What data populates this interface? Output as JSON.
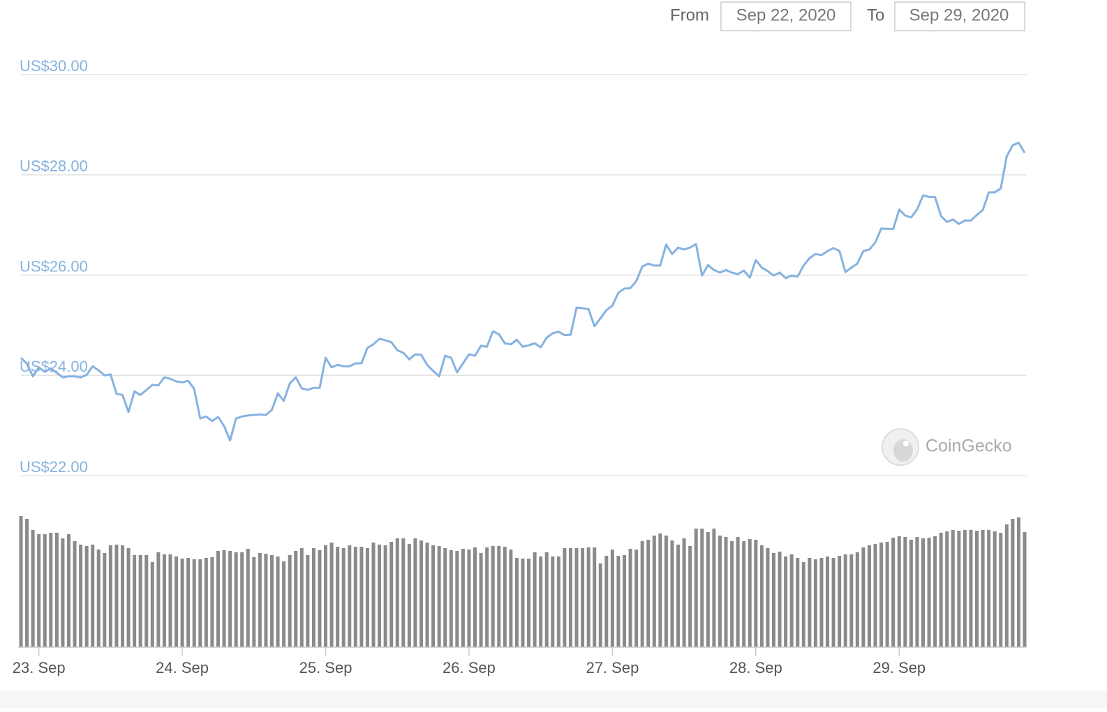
{
  "date_range": {
    "from_label": "From",
    "from": "Sep 22, 2020",
    "to_label": "To",
    "to": "Sep 29, 2020"
  },
  "watermark": "CoinGecko",
  "chart_data": [
    {
      "type": "line",
      "color": "#86b2e0",
      "grid": true,
      "xlim": [
        0,
        168
      ],
      "ylim": [
        22,
        30
      ],
      "yticks": [
        {
          "value": 30,
          "label": "US$30.00"
        },
        {
          "value": 28,
          "label": "US$28.00"
        },
        {
          "value": 26,
          "label": "US$26.00"
        },
        {
          "value": 24,
          "label": "US$24.00"
        },
        {
          "value": 22,
          "label": "US$22.00"
        }
      ],
      "x": [
        0,
        1,
        2,
        3,
        4,
        5,
        6,
        7,
        8,
        9,
        10,
        11,
        12,
        13,
        14,
        15,
        16,
        17,
        18,
        19,
        20,
        21,
        22,
        23,
        24,
        25,
        26,
        27,
        28,
        29,
        30,
        31,
        32,
        33,
        34,
        35,
        36,
        37,
        38,
        39,
        40,
        41,
        42,
        43,
        44,
        45,
        46,
        47,
        48,
        49,
        50,
        51,
        52,
        53,
        54,
        55,
        56,
        57,
        58,
        59,
        60,
        61,
        62,
        63,
        64,
        65,
        66,
        67,
        68,
        69,
        70,
        71,
        72,
        73,
        74,
        75,
        76,
        77,
        78,
        79,
        80,
        81,
        82,
        83,
        84,
        85,
        86,
        87,
        88,
        89,
        90,
        91,
        92,
        93,
        94,
        95,
        96,
        97,
        98,
        99,
        100,
        101,
        102,
        103,
        104,
        105,
        106,
        107,
        108,
        109,
        110,
        111,
        112,
        113,
        114,
        115,
        116,
        117,
        118,
        119,
        120,
        121,
        122,
        123,
        124,
        125,
        126,
        127,
        128,
        129,
        130,
        131,
        132,
        133,
        134,
        135,
        136,
        137,
        138,
        139,
        140,
        141,
        142,
        143,
        144,
        145,
        146,
        147,
        148,
        149,
        150,
        151,
        152,
        153,
        154,
        155,
        156,
        157,
        158,
        159,
        160,
        161,
        162,
        163,
        164,
        165,
        166,
        167,
        168
      ],
      "values": [
        24.35,
        24.23,
        23.98,
        24.16,
        24.07,
        24.14,
        24.05,
        23.96,
        23.98,
        23.98,
        23.96,
        24.01,
        24.18,
        24.1,
        24.0,
        24.02,
        23.63,
        23.61,
        23.27,
        23.68,
        23.61,
        23.71,
        23.81,
        23.8,
        23.96,
        23.93,
        23.88,
        23.86,
        23.89,
        23.73,
        23.14,
        23.18,
        23.09,
        23.17,
        22.99,
        22.7,
        23.14,
        23.18,
        23.2,
        23.21,
        23.22,
        23.21,
        23.31,
        23.64,
        23.49,
        23.84,
        23.96,
        23.74,
        23.71,
        23.75,
        23.75,
        24.35,
        24.16,
        24.21,
        24.18,
        24.18,
        24.24,
        24.24,
        24.55,
        24.62,
        24.73,
        24.7,
        24.66,
        24.5,
        24.45,
        24.32,
        24.42,
        24.41,
        24.21,
        24.09,
        23.98,
        24.39,
        24.35,
        24.06,
        24.24,
        24.42,
        24.39,
        24.59,
        24.57,
        24.88,
        24.82,
        24.64,
        24.62,
        24.71,
        24.57,
        24.6,
        24.64,
        24.56,
        24.75,
        24.84,
        24.87,
        24.8,
        24.81,
        25.35,
        25.34,
        25.32,
        24.98,
        25.14,
        25.3,
        25.39,
        25.65,
        25.73,
        25.74,
        25.88,
        26.17,
        26.23,
        26.19,
        26.19,
        26.61,
        26.42,
        26.55,
        26.51,
        26.55,
        26.62,
        25.99,
        26.2,
        26.1,
        26.05,
        26.1,
        26.05,
        26.02,
        26.09,
        25.95,
        26.3,
        26.15,
        26.08,
        25.99,
        26.05,
        25.94,
        25.99,
        25.97,
        26.19,
        26.34,
        26.42,
        26.4,
        26.48,
        26.54,
        26.48,
        26.06,
        26.15,
        26.23,
        26.48,
        26.51,
        26.65,
        26.93,
        26.92,
        26.92,
        27.31,
        27.19,
        27.15,
        27.31,
        27.59,
        27.56,
        27.56,
        27.18,
        27.06,
        27.11,
        27.02,
        27.09,
        27.09,
        27.2,
        27.3,
        27.65,
        27.65,
        27.73,
        28.37,
        28.59,
        28.64,
        28.44
      ]
    },
    {
      "type": "bar",
      "color": "#8a8a8a",
      "xlim": [
        0,
        168
      ],
      "xticks": [
        {
          "value": 3,
          "label": "23. Sep"
        },
        {
          "value": 27,
          "label": "24. Sep"
        },
        {
          "value": 51,
          "label": "25. Sep"
        },
        {
          "value": 75,
          "label": "26. Sep"
        },
        {
          "value": 99,
          "label": "27. Sep"
        },
        {
          "value": 123,
          "label": "28. Sep"
        },
        {
          "value": 147,
          "label": "29. Sep"
        }
      ],
      "x": [
        0,
        1,
        2,
        3,
        4,
        5,
        6,
        7,
        8,
        9,
        10,
        11,
        12,
        13,
        14,
        15,
        16,
        17,
        18,
        19,
        20,
        21,
        22,
        23,
        24,
        25,
        26,
        27,
        28,
        29,
        30,
        31,
        32,
        33,
        34,
        35,
        36,
        37,
        38,
        39,
        40,
        41,
        42,
        43,
        44,
        45,
        46,
        47,
        48,
        49,
        50,
        51,
        52,
        53,
        54,
        55,
        56,
        57,
        58,
        59,
        60,
        61,
        62,
        63,
        64,
        65,
        66,
        67,
        68,
        69,
        70,
        71,
        72,
        73,
        74,
        75,
        76,
        77,
        78,
        79,
        80,
        81,
        82,
        83,
        84,
        85,
        86,
        87,
        88,
        89,
        90,
        91,
        92,
        93,
        94,
        95,
        96,
        97,
        98,
        99,
        100,
        101,
        102,
        103,
        104,
        105,
        106,
        107,
        108,
        109,
        110,
        111,
        112,
        113,
        114,
        115,
        116,
        117,
        118,
        119,
        120,
        121,
        122,
        123,
        124,
        125,
        126,
        127,
        128,
        129,
        130,
        131,
        132,
        133,
        134,
        135,
        136,
        137,
        138,
        139,
        140,
        141,
        142,
        143,
        144,
        145,
        146,
        147,
        148,
        149,
        150,
        151,
        152,
        153,
        154,
        155,
        156,
        157,
        158,
        159,
        160,
        161,
        162,
        163,
        164,
        165,
        166,
        167,
        168
      ],
      "values": [
        188,
        184,
        168,
        162,
        162,
        164,
        164,
        156,
        162,
        152,
        147,
        145,
        147,
        140,
        135,
        146,
        147,
        146,
        142,
        132,
        132,
        132,
        122,
        136,
        133,
        133,
        130,
        127,
        128,
        126,
        126,
        128,
        129,
        138,
        139,
        138,
        136,
        136,
        141,
        129,
        135,
        134,
        132,
        130,
        123,
        132,
        138,
        142,
        132,
        142,
        139,
        146,
        150,
        144,
        142,
        146,
        144,
        144,
        142,
        150,
        147,
        146,
        151,
        156,
        156,
        148,
        156,
        153,
        150,
        146,
        145,
        142,
        139,
        138,
        141,
        140,
        143,
        135,
        143,
        145,
        145,
        144,
        140,
        128,
        127,
        127,
        136,
        130,
        136,
        130,
        130,
        142,
        142,
        142,
        142,
        143,
        143,
        120,
        131,
        140,
        131,
        132,
        141,
        140,
        152,
        154,
        160,
        163,
        160,
        153,
        147,
        156,
        145,
        170,
        170,
        165,
        170,
        160,
        158,
        152,
        158,
        152,
        155,
        154,
        146,
        142,
        135,
        137,
        130,
        133,
        128,
        122,
        128,
        126,
        128,
        130,
        128,
        131,
        133,
        133,
        136,
        143,
        146,
        148,
        150,
        151,
        157,
        159,
        158,
        154,
        158,
        156,
        157,
        159,
        164,
        166,
        168,
        167,
        168,
        168,
        167,
        168,
        168,
        166,
        164,
        176,
        184,
        186,
        165
      ]
    }
  ]
}
